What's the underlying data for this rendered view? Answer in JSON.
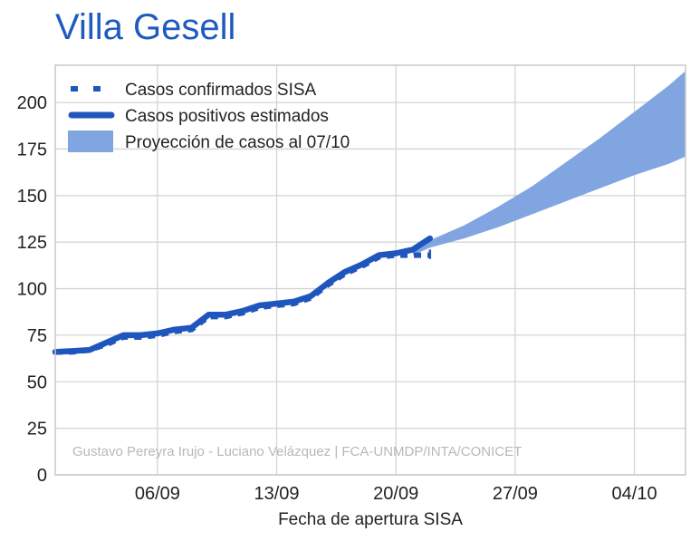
{
  "chart_data": {
    "type": "line",
    "title": "Villa Gesell",
    "xlabel": "Fecha de apertura SISA",
    "ylabel": "",
    "x_start": "2020-08-31",
    "x_end": "2020-10-07",
    "ylim": [
      0,
      220
    ],
    "yticks": [
      0,
      25,
      50,
      75,
      100,
      125,
      150,
      175,
      200
    ],
    "xticks": [
      {
        "date": "2020-09-06",
        "label": "06/09"
      },
      {
        "date": "2020-09-13",
        "label": "13/09"
      },
      {
        "date": "2020-09-20",
        "label": "20/09"
      },
      {
        "date": "2020-09-27",
        "label": "27/09"
      },
      {
        "date": "2020-10-04",
        "label": "04/10"
      }
    ],
    "grid": true,
    "legend_position": "top-left",
    "credit": "Gustavo Pereyra Irujo - Luciano Velázquez | FCA-UNMDP/INTA/CONICET",
    "colors": {
      "line": "#1f56bd",
      "band": "#81a5e0",
      "title": "#1f5bbf"
    },
    "series": [
      {
        "name": "Casos confirmados SISA",
        "style": "dotted",
        "dates": [
          "2020-08-31",
          "2020-09-01",
          "2020-09-02",
          "2020-09-03",
          "2020-09-04",
          "2020-09-05",
          "2020-09-06",
          "2020-09-07",
          "2020-09-08",
          "2020-09-09",
          "2020-09-10",
          "2020-09-11",
          "2020-09-12",
          "2020-09-13",
          "2020-09-14",
          "2020-09-15",
          "2020-09-16",
          "2020-09-17",
          "2020-09-18",
          "2020-09-19",
          "2020-09-20",
          "2020-09-21",
          "2020-09-22"
        ],
        "values": [
          66,
          66,
          67,
          70,
          74,
          74,
          75,
          77,
          78,
          85,
          85,
          87,
          90,
          91,
          92,
          95,
          102,
          108,
          112,
          117,
          118,
          118,
          118
        ]
      },
      {
        "name": "Casos positivos estimados",
        "style": "solid",
        "dates": [
          "2020-08-31",
          "2020-09-01",
          "2020-09-02",
          "2020-09-03",
          "2020-09-04",
          "2020-09-05",
          "2020-09-06",
          "2020-09-07",
          "2020-09-08",
          "2020-09-09",
          "2020-09-10",
          "2020-09-11",
          "2020-09-12",
          "2020-09-13",
          "2020-09-14",
          "2020-09-15",
          "2020-09-16",
          "2020-09-17",
          "2020-09-18",
          "2020-09-19",
          "2020-09-20",
          "2020-09-21",
          "2020-09-22"
        ],
        "values": [
          66,
          66.5,
          67,
          71,
          75,
          75,
          76,
          78,
          79,
          86,
          86,
          88,
          91,
          92,
          93,
          96,
          103,
          109,
          113,
          118,
          119,
          121,
          127
        ]
      }
    ],
    "projection": {
      "name": "Proyección de casos al 07/10",
      "dates": [
        "2020-09-21",
        "2020-09-22",
        "2020-09-24",
        "2020-09-26",
        "2020-09-28",
        "2020-09-30",
        "2020-10-02",
        "2020-10-04",
        "2020-10-06",
        "2020-10-07"
      ],
      "lower": [
        118,
        122,
        127,
        133,
        140,
        147,
        154,
        161,
        167,
        171
      ],
      "upper": [
        120,
        126,
        134,
        144,
        155,
        168,
        181,
        195,
        209,
        217
      ]
    }
  }
}
